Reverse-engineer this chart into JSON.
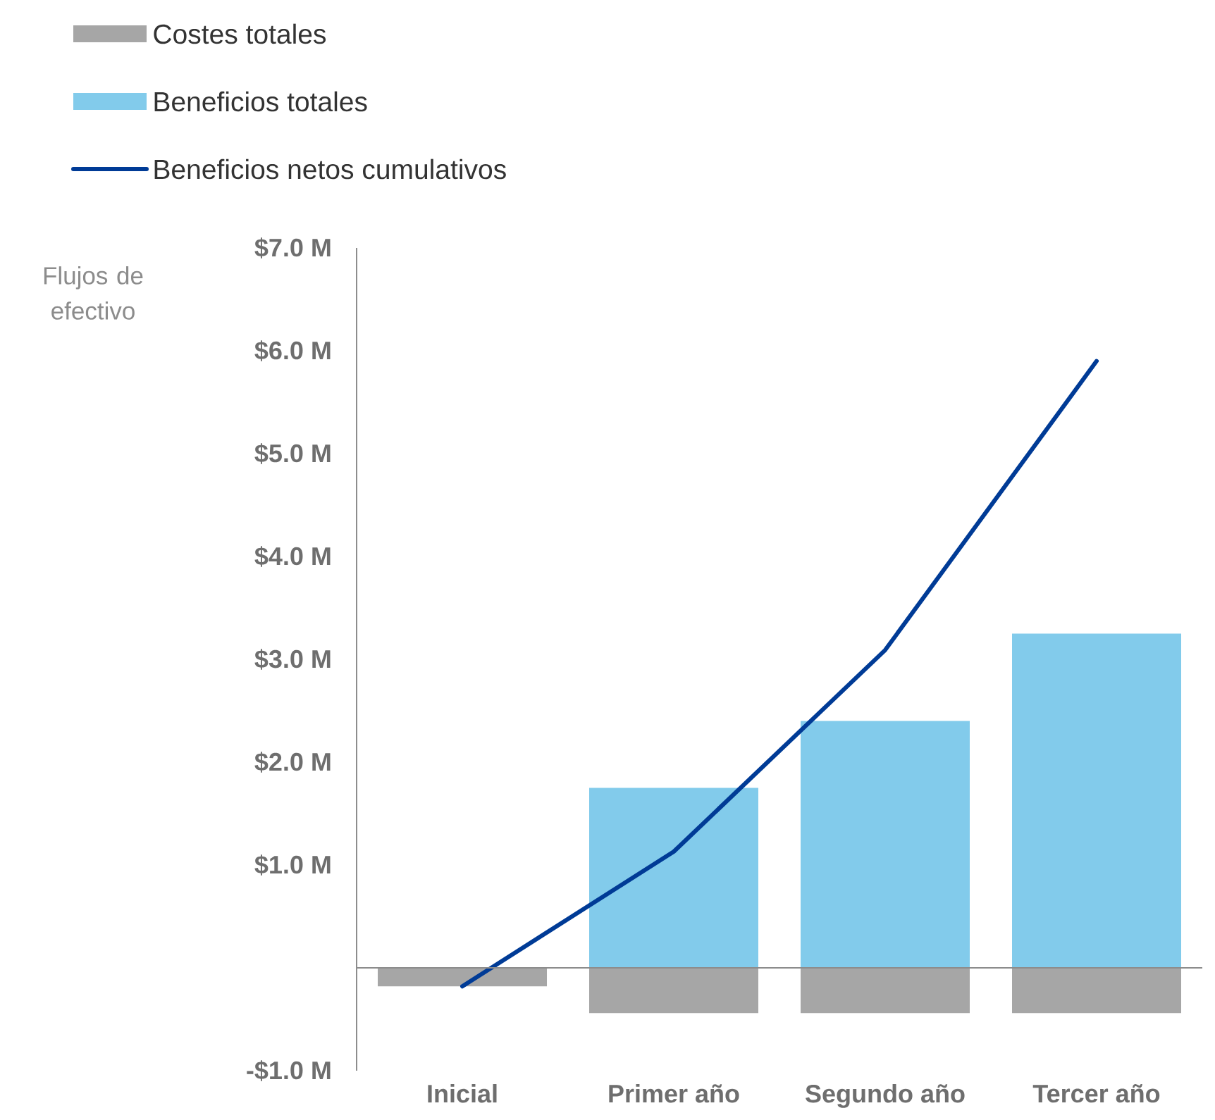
{
  "chart_data": {
    "type": "bar",
    "ylabel": "Flujos de efectivo",
    "categories": [
      "Inicial",
      "Primer año",
      "Segundo año",
      "Tercer año"
    ],
    "series": [
      {
        "name": "Costes totales",
        "color": "#a6a6a6",
        "values": [
          -0.18,
          -0.44,
          -0.44,
          -0.44
        ]
      },
      {
        "name": "Beneficios totales",
        "color": "#82cbeb",
        "values": [
          null,
          1.75,
          2.4,
          3.25
        ]
      },
      {
        "name": "Beneficios netos cumulativos",
        "type": "line",
        "color": "#003b96",
        "values": [
          -0.18,
          1.13,
          3.09,
          5.9
        ]
      }
    ],
    "stacked": true,
    "ylim": [
      -1,
      7
    ],
    "yticks": [
      {
        "value": -1,
        "label": "-$1.0 M"
      },
      {
        "value": 0,
        "label": null
      },
      {
        "value": 1,
        "label": "$1.0 M"
      },
      {
        "value": 2,
        "label": "$2.0 M"
      },
      {
        "value": 3,
        "label": "$3.0 M"
      },
      {
        "value": 4,
        "label": "$4.0 M"
      },
      {
        "value": 5,
        "label": "$5.0 M"
      },
      {
        "value": 6,
        "label": "$6.0 M"
      },
      {
        "value": 7,
        "label": "$7.0 M"
      }
    ],
    "ref_lines": [
      {
        "axis": "y",
        "value": 0,
        "color": "#8c8c8c"
      }
    ],
    "legend": "top left",
    "grid": false,
    "marker": "none",
    "line_style": "solid"
  }
}
